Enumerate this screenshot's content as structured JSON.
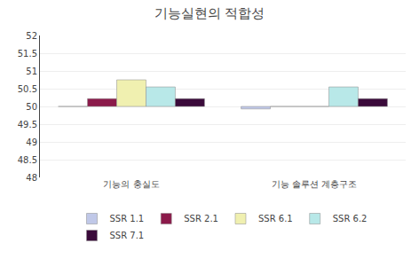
{
  "chart_data": {
    "type": "bar",
    "title": "기능실현의 적합성",
    "categories": [
      "기능의 충실도",
      "기능 솔루션 계층구조"
    ],
    "series": [
      {
        "name": "SSR 1.1",
        "color": "#c0c8e8",
        "values": [
          50.0,
          49.93
        ]
      },
      {
        "name": "SSR 2.1",
        "color": "#8b1a4a",
        "values": [
          50.22,
          50.0
        ]
      },
      {
        "name": "SSR 6.1",
        "color": "#f0f0b0",
        "values": [
          50.75,
          50.0
        ]
      },
      {
        "name": "SSR 6.2",
        "color": "#b8e8e8",
        "values": [
          50.55,
          50.55
        ]
      },
      {
        "name": "SSR 7.1",
        "color": "#3a0a3a",
        "values": [
          50.22,
          50.22
        ]
      }
    ],
    "base": 50,
    "ylim": [
      48,
      52
    ],
    "yticks": [
      48,
      48.5,
      49,
      49.5,
      50,
      50.5,
      51,
      51.5,
      52
    ],
    "grid": true,
    "legend": "bottom"
  }
}
